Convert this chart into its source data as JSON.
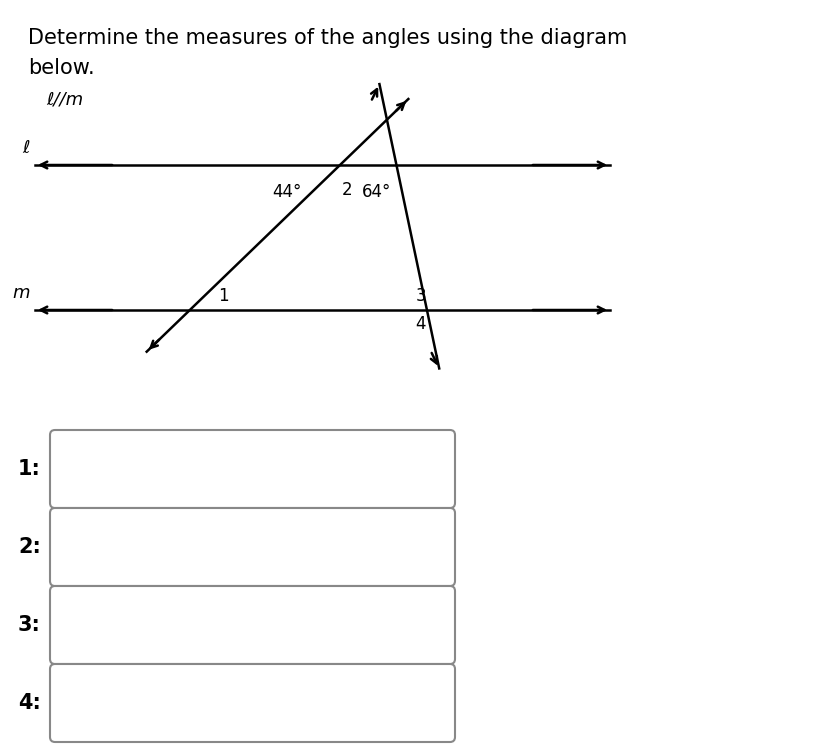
{
  "title_line1": "Determine the measures of the angles using the diagram",
  "title_line2": "below.",
  "parallel_label": "ℓ//m",
  "line_l_label": "ℓ",
  "line_m_label": "m",
  "angle_44": "44°",
  "angle_2": "2",
  "angle_64": "64°",
  "angle_1": "1",
  "angle_3": "3",
  "angle_4": "4",
  "answer_labels": [
    "1:",
    "2:",
    "3:",
    "4:"
  ],
  "bg_color": "#ffffff",
  "line_color": "#000000",
  "box_edge_color": "#888888",
  "text_color": "#000000"
}
